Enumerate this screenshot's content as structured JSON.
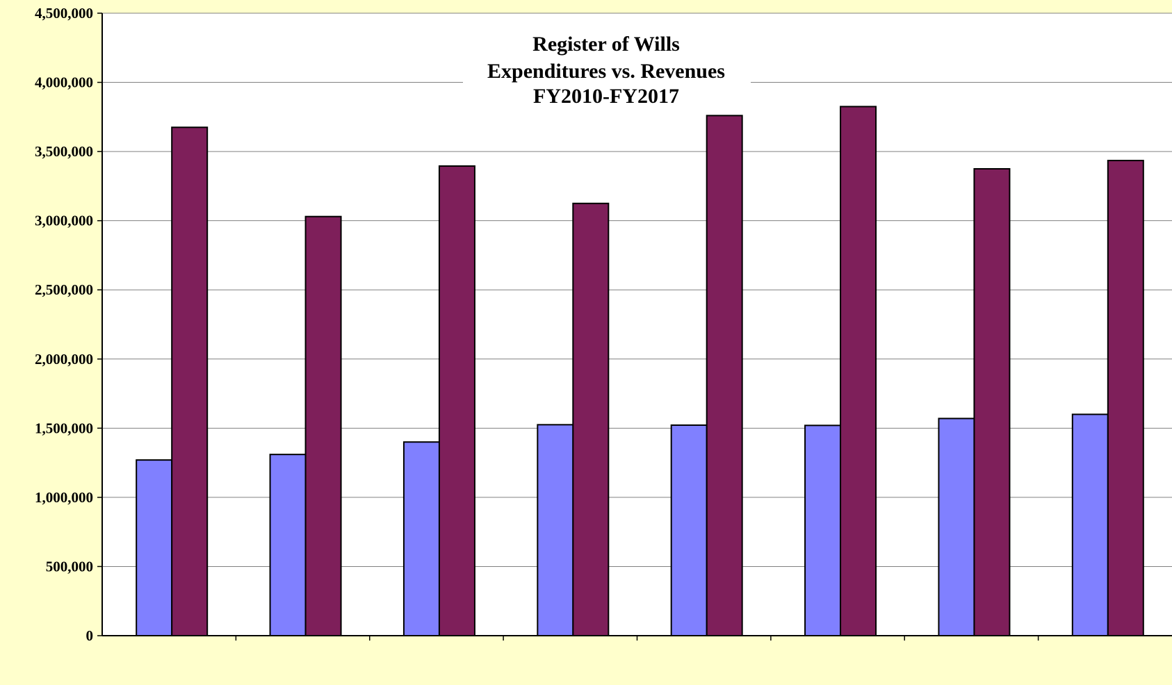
{
  "colors": {
    "page_background": "#ffffcc",
    "plot_background": "#ffffff",
    "gridline": "#808080",
    "bar_outline": "#000000"
  },
  "chart_data": {
    "type": "bar",
    "title_lines": [
      "Register of Wills",
      "Expenditures vs. Revenues",
      "FY2010-FY2017"
    ],
    "categories": [
      "",
      "",
      "",
      "",
      "",
      "",
      "",
      ""
    ],
    "series": [
      {
        "color": "#8080ff",
        "values": [
          1270000,
          1310000,
          1400000,
          1525000,
          1522000,
          1520000,
          1570000,
          1600000
        ]
      },
      {
        "color": "#7e1f5a",
        "values": [
          3675000,
          3030000,
          3395000,
          3125000,
          3760000,
          3825000,
          3375000,
          3435000
        ]
      }
    ],
    "ylim": [
      0,
      4500000
    ],
    "y_ticks": [
      {
        "value": 0,
        "label": "0"
      },
      {
        "value": 500000,
        "label": "500,000"
      },
      {
        "value": 1000000,
        "label": "1,000,000"
      },
      {
        "value": 1500000,
        "label": "1,500,000"
      },
      {
        "value": 2000000,
        "label": "2,000,000"
      },
      {
        "value": 2500000,
        "label": "2,500,000"
      },
      {
        "value": 3000000,
        "label": "3,000,000"
      },
      {
        "value": 3500000,
        "label": "3,500,000"
      },
      {
        "value": 4000000,
        "label": "4,000,000"
      },
      {
        "value": 4500000,
        "label": "4,500,000"
      }
    ],
    "grid": true,
    "legend": "none"
  }
}
